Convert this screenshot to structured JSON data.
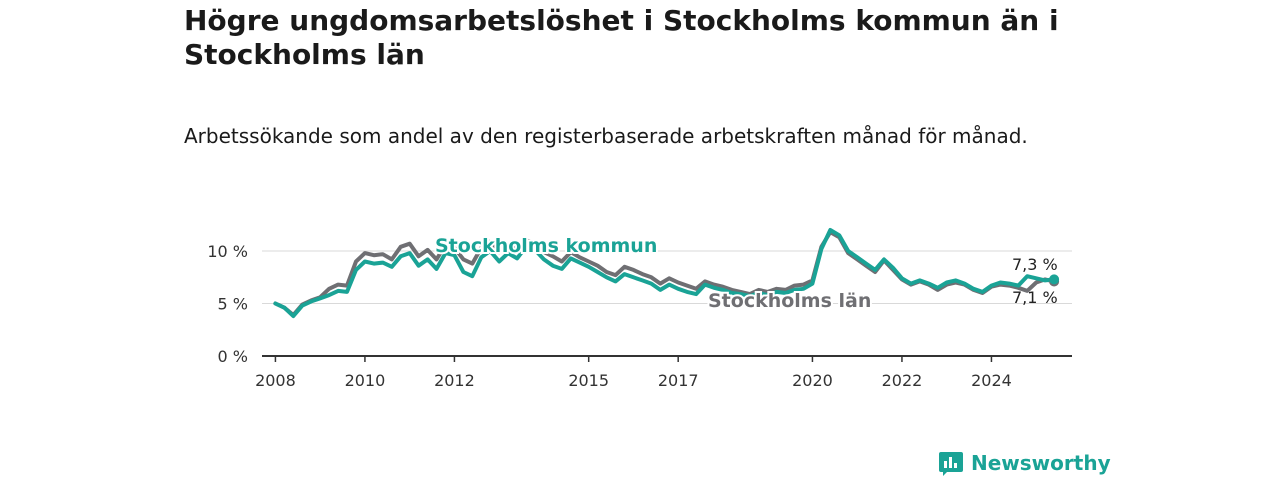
{
  "title": "Högre ungdomsarbetslöshet i Stockholms kommun än i Stockholms län",
  "subtitle": "Arbetssökande som andel av den registerbaserade arbetskraften månad för månad.",
  "brand": "Newsworthy",
  "colors": {
    "kommun": "#1aa396",
    "lan": "#6f6f73",
    "axis": "#333333",
    "grid": "#d9d9d9"
  },
  "chart_data": {
    "type": "line",
    "y_unit": "%",
    "ylim": [
      0,
      11
    ],
    "y_ticks": [
      0,
      5,
      10
    ],
    "y_tick_labels": [
      "0 %",
      "5 %",
      "10 %"
    ],
    "x_ticks": [
      2008,
      2010,
      2012,
      2015,
      2017,
      2020,
      2022,
      2024
    ],
    "xlim": [
      2007.7,
      2025.8
    ],
    "grid": "horizontal",
    "series": [
      {
        "name": "Stockholms kommun",
        "end_label": "7,3 %",
        "points": [
          [
            2008.0,
            5.0
          ],
          [
            2008.2,
            4.6
          ],
          [
            2008.4,
            3.8
          ],
          [
            2008.6,
            4.8
          ],
          [
            2008.8,
            5.2
          ],
          [
            2009.0,
            5.5
          ],
          [
            2009.2,
            5.8
          ],
          [
            2009.4,
            6.2
          ],
          [
            2009.6,
            6.1
          ],
          [
            2009.8,
            8.2
          ],
          [
            2010.0,
            9.0
          ],
          [
            2010.2,
            8.8
          ],
          [
            2010.4,
            8.9
          ],
          [
            2010.6,
            8.5
          ],
          [
            2010.8,
            9.5
          ],
          [
            2011.0,
            9.8
          ],
          [
            2011.2,
            8.6
          ],
          [
            2011.4,
            9.2
          ],
          [
            2011.6,
            8.3
          ],
          [
            2011.8,
            9.8
          ],
          [
            2012.0,
            9.6
          ],
          [
            2012.2,
            8.0
          ],
          [
            2012.4,
            7.6
          ],
          [
            2012.6,
            9.4
          ],
          [
            2012.8,
            10.0
          ],
          [
            2013.0,
            9.0
          ],
          [
            2013.2,
            9.8
          ],
          [
            2013.4,
            9.3
          ],
          [
            2013.6,
            10.4
          ],
          [
            2013.8,
            10.1
          ],
          [
            2014.0,
            9.2
          ],
          [
            2014.2,
            8.6
          ],
          [
            2014.4,
            8.3
          ],
          [
            2014.6,
            9.3
          ],
          [
            2014.8,
            8.9
          ],
          [
            2015.0,
            8.5
          ],
          [
            2015.2,
            8.0
          ],
          [
            2015.4,
            7.5
          ],
          [
            2015.6,
            7.1
          ],
          [
            2015.8,
            7.8
          ],
          [
            2016.0,
            7.5
          ],
          [
            2016.2,
            7.2
          ],
          [
            2016.4,
            6.9
          ],
          [
            2016.6,
            6.3
          ],
          [
            2016.8,
            6.8
          ],
          [
            2017.0,
            6.4
          ],
          [
            2017.2,
            6.1
          ],
          [
            2017.4,
            5.9
          ],
          [
            2017.6,
            6.8
          ],
          [
            2017.8,
            6.5
          ],
          [
            2018.0,
            6.3
          ],
          [
            2018.2,
            6.0
          ],
          [
            2018.4,
            5.9
          ],
          [
            2018.6,
            5.7
          ],
          [
            2018.8,
            6.0
          ],
          [
            2019.0,
            5.8
          ],
          [
            2019.2,
            6.1
          ],
          [
            2019.4,
            6.0
          ],
          [
            2019.6,
            6.3
          ],
          [
            2019.8,
            6.4
          ],
          [
            2020.0,
            6.9
          ],
          [
            2020.2,
            10.2
          ],
          [
            2020.4,
            12.0
          ],
          [
            2020.6,
            11.5
          ],
          [
            2020.8,
            10.0
          ],
          [
            2021.0,
            9.4
          ],
          [
            2021.2,
            8.8
          ],
          [
            2021.4,
            8.2
          ],
          [
            2021.6,
            9.2
          ],
          [
            2021.8,
            8.4
          ],
          [
            2022.0,
            7.4
          ],
          [
            2022.2,
            6.9
          ],
          [
            2022.4,
            7.2
          ],
          [
            2022.6,
            6.9
          ],
          [
            2022.8,
            6.5
          ],
          [
            2023.0,
            7.0
          ],
          [
            2023.2,
            7.2
          ],
          [
            2023.4,
            6.9
          ],
          [
            2023.6,
            6.4
          ],
          [
            2023.8,
            6.1
          ],
          [
            2024.0,
            6.7
          ],
          [
            2024.2,
            7.0
          ],
          [
            2024.4,
            6.9
          ],
          [
            2024.6,
            6.7
          ],
          [
            2024.8,
            7.6
          ],
          [
            2025.0,
            7.4
          ],
          [
            2025.2,
            7.2
          ],
          [
            2025.4,
            7.3
          ]
        ]
      },
      {
        "name": "Stockholms län",
        "end_label": "7,1 %",
        "points": [
          [
            2008.0,
            5.0
          ],
          [
            2008.2,
            4.6
          ],
          [
            2008.4,
            3.9
          ],
          [
            2008.6,
            4.9
          ],
          [
            2008.8,
            5.3
          ],
          [
            2009.0,
            5.6
          ],
          [
            2009.2,
            6.4
          ],
          [
            2009.4,
            6.8
          ],
          [
            2009.6,
            6.7
          ],
          [
            2009.8,
            9.0
          ],
          [
            2010.0,
            9.8
          ],
          [
            2010.2,
            9.6
          ],
          [
            2010.4,
            9.7
          ],
          [
            2010.6,
            9.2
          ],
          [
            2010.8,
            10.4
          ],
          [
            2011.0,
            10.7
          ],
          [
            2011.2,
            9.5
          ],
          [
            2011.4,
            10.1
          ],
          [
            2011.6,
            9.2
          ],
          [
            2011.8,
            10.6
          ],
          [
            2012.0,
            10.3
          ],
          [
            2012.2,
            9.2
          ],
          [
            2012.4,
            8.8
          ],
          [
            2012.6,
            10.3
          ],
          [
            2012.8,
            10.9
          ],
          [
            2013.0,
            9.9
          ],
          [
            2013.2,
            10.6
          ],
          [
            2013.4,
            10.1
          ],
          [
            2013.6,
            11.0
          ],
          [
            2013.8,
            10.8
          ],
          [
            2014.0,
            9.9
          ],
          [
            2014.2,
            9.5
          ],
          [
            2014.4,
            9.0
          ],
          [
            2014.6,
            9.9
          ],
          [
            2014.8,
            9.4
          ],
          [
            2015.0,
            9.0
          ],
          [
            2015.2,
            8.6
          ],
          [
            2015.4,
            8.0
          ],
          [
            2015.6,
            7.7
          ],
          [
            2015.8,
            8.5
          ],
          [
            2016.0,
            8.2
          ],
          [
            2016.2,
            7.8
          ],
          [
            2016.4,
            7.5
          ],
          [
            2016.6,
            6.9
          ],
          [
            2016.8,
            7.4
          ],
          [
            2017.0,
            7.0
          ],
          [
            2017.2,
            6.7
          ],
          [
            2017.4,
            6.4
          ],
          [
            2017.6,
            7.1
          ],
          [
            2017.8,
            6.8
          ],
          [
            2018.0,
            6.6
          ],
          [
            2018.2,
            6.3
          ],
          [
            2018.4,
            6.1
          ],
          [
            2018.6,
            5.9
          ],
          [
            2018.8,
            6.3
          ],
          [
            2019.0,
            6.1
          ],
          [
            2019.2,
            6.4
          ],
          [
            2019.4,
            6.3
          ],
          [
            2019.6,
            6.7
          ],
          [
            2019.8,
            6.8
          ],
          [
            2020.0,
            7.2
          ],
          [
            2020.2,
            10.4
          ],
          [
            2020.4,
            11.8
          ],
          [
            2020.6,
            11.3
          ],
          [
            2020.8,
            9.8
          ],
          [
            2021.0,
            9.2
          ],
          [
            2021.2,
            8.6
          ],
          [
            2021.4,
            8.0
          ],
          [
            2021.6,
            9.1
          ],
          [
            2021.8,
            8.2
          ],
          [
            2022.0,
            7.3
          ],
          [
            2022.2,
            6.8
          ],
          [
            2022.4,
            7.1
          ],
          [
            2022.6,
            6.8
          ],
          [
            2022.8,
            6.3
          ],
          [
            2023.0,
            6.8
          ],
          [
            2023.2,
            7.0
          ],
          [
            2023.4,
            6.8
          ],
          [
            2023.6,
            6.3
          ],
          [
            2023.8,
            6.0
          ],
          [
            2024.0,
            6.6
          ],
          [
            2024.2,
            6.8
          ],
          [
            2024.4,
            6.7
          ],
          [
            2024.6,
            6.5
          ],
          [
            2024.8,
            6.2
          ],
          [
            2025.0,
            7.0
          ],
          [
            2025.2,
            7.3
          ],
          [
            2025.4,
            7.1
          ]
        ]
      }
    ]
  }
}
